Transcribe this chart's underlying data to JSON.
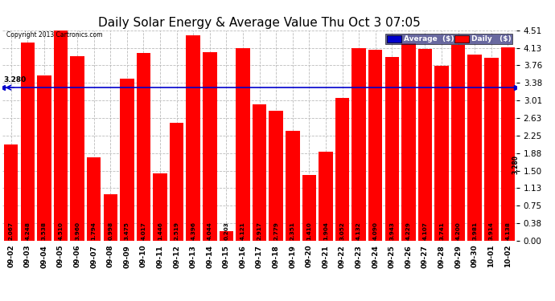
{
  "title": "Daily Solar Energy & Average Value Thu Oct 3 07:05",
  "copyright": "Copyright 2013 Cartronics.com",
  "categories": [
    "09-02",
    "09-03",
    "09-04",
    "09-05",
    "09-06",
    "09-07",
    "09-08",
    "09-09",
    "09-10",
    "09-11",
    "09-12",
    "09-13",
    "09-14",
    "09-15",
    "09-16",
    "09-17",
    "09-18",
    "09-19",
    "09-20",
    "09-21",
    "09-22",
    "09-23",
    "09-24",
    "09-25",
    "09-26",
    "09-27",
    "09-28",
    "09-29",
    "09-30",
    "10-01",
    "10-02"
  ],
  "values": [
    2.067,
    4.248,
    3.538,
    4.51,
    3.96,
    1.794,
    0.998,
    3.475,
    4.017,
    1.446,
    2.519,
    4.396,
    4.044,
    0.203,
    4.121,
    2.917,
    2.779,
    2.351,
    1.41,
    1.904,
    3.052,
    4.132,
    4.09,
    3.943,
    4.229,
    4.107,
    3.741,
    4.2,
    3.981,
    3.914,
    4.138
  ],
  "average": 3.28,
  "bar_color": "#ff0000",
  "average_color": "#0000cc",
  "background_color": "#ffffff",
  "grid_color": "#bbbbbb",
  "ylim": [
    0,
    4.51
  ],
  "yticks": [
    0.0,
    0.38,
    0.75,
    1.13,
    1.5,
    1.88,
    2.25,
    2.63,
    3.01,
    3.38,
    3.76,
    4.13,
    4.51
  ],
  "legend_avg_color": "#0000cc",
  "legend_daily_color": "#ff0000",
  "value_fontsize": 5.2,
  "title_fontsize": 11,
  "bar_width": 0.85
}
